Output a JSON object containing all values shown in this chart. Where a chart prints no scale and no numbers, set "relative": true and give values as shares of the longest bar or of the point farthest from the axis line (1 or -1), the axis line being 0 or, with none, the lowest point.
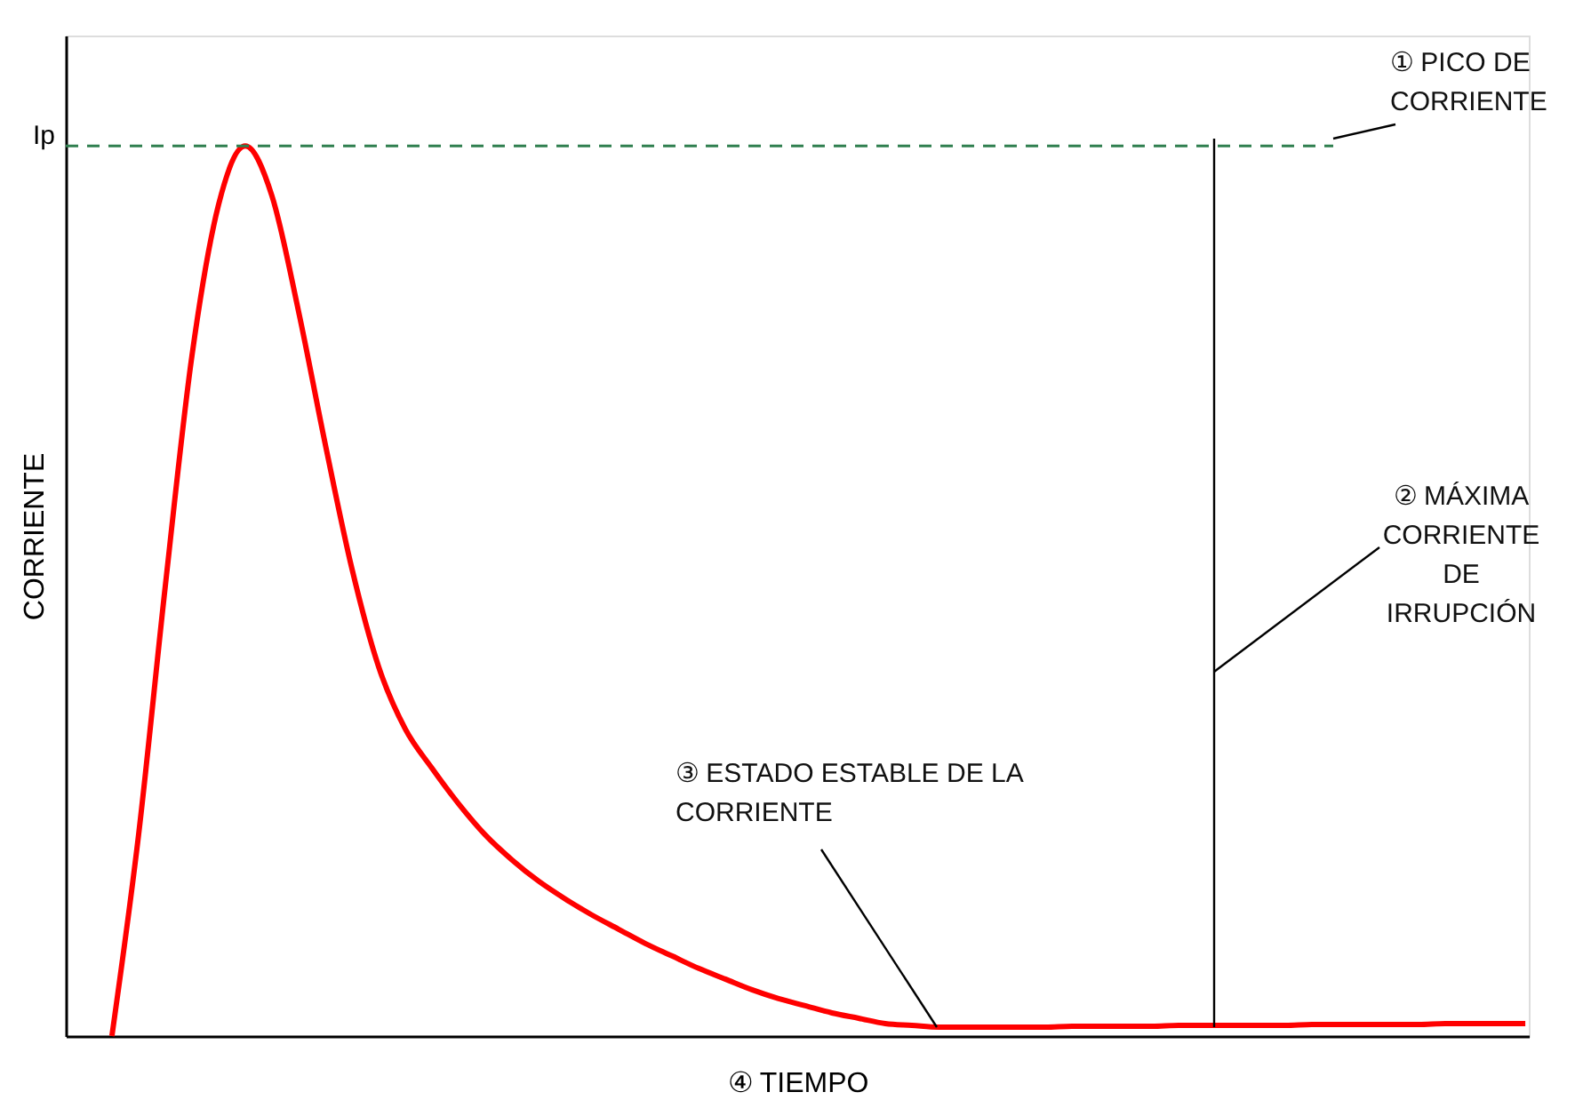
{
  "chart_data": {
    "type": "line",
    "relative": true,
    "xlabel": "④ TIEMPO",
    "ylabel": "CORRIENTE",
    "categories": [
      null,
      null,
      null,
      null,
      null,
      null,
      null,
      null,
      null,
      null,
      null,
      null,
      null,
      null,
      null,
      null,
      null,
      null,
      null,
      null,
      null,
      null,
      null,
      null,
      null,
      null,
      null,
      null,
      null,
      null,
      null,
      null,
      null,
      null,
      null,
      null,
      null,
      null,
      null,
      null,
      null,
      null,
      null,
      null,
      null,
      null,
      null,
      null,
      null,
      null,
      null,
      null,
      null,
      null
    ],
    "series": [
      {
        "color": "#ff0000",
        "values": [
          0,
          0.226,
          0.505,
          0.764,
          0.934,
          1,
          0.944,
          0.814,
          0.665,
          0.525,
          0.415,
          0.345,
          0.301,
          0.261,
          0.226,
          0.198,
          0.174,
          0.154,
          0.136,
          0.12,
          0.104,
          0.09,
          0.076,
          0.064,
          0.052,
          0.042,
          0.034,
          0.026,
          0.02,
          0.014,
          0.012,
          0.01,
          0.01,
          0.01,
          0.01,
          0.01,
          0.011,
          0.011,
          0.011,
          0.011,
          0.012,
          0.012,
          0.012,
          0.012,
          0.012,
          0.013,
          0.013,
          0.013,
          0.013,
          0.013,
          0.014,
          0.014,
          0.014,
          0.014
        ]
      }
    ],
    "ref_lines": [
      {
        "axis": "y",
        "value": 1,
        "label": "Ip",
        "color": "#2f7f4f",
        "line_style": "dashed"
      }
    ],
    "annotations": [
      "① PICO DE\nCORRIENTE",
      "② MÁXIMA\nCORRIENTE\nDE\nIRRUPCIÓN",
      "③ ESTADO ESTABLE DE LA\nCORRIENTE"
    ],
    "grid": false,
    "marker": "none",
    "line_style": "solid"
  }
}
